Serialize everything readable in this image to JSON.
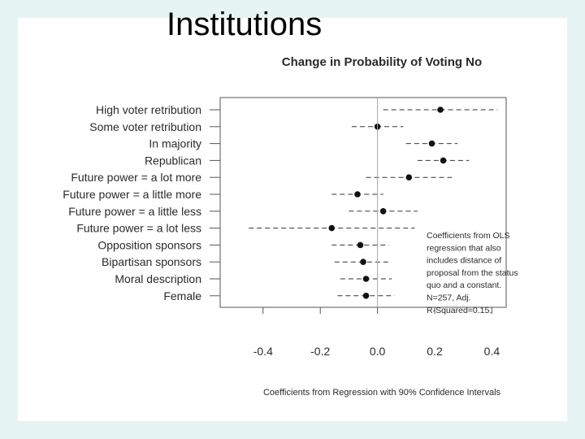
{
  "slide": {
    "title": "Institutions"
  },
  "chart_data": {
    "type": "scatter",
    "title": "Change in Probability of Voting No",
    "xlabel": "Coefficients from Regression with 90% Confidence Intervals",
    "ylabel": "",
    "xlim": [
      -0.55,
      0.45
    ],
    "xticks": [
      -0.4,
      -0.2,
      0.0,
      0.2,
      0.4
    ],
    "xtick_labels": [
      "-0.4",
      "-0.2",
      "0.0",
      "0.2",
      "0.4"
    ],
    "reference_line": 0.0,
    "series": [
      {
        "name": "Coefficient",
        "categories": [
          "High voter retribution",
          "Some voter retribution",
          "In majority",
          "Republican",
          "Future power = a lot more",
          "Future power = a little more",
          "Future power = a little less",
          "Future power = a lot less",
          "Opposition sponsors",
          "Bipartisan sponsors",
          "Moral description",
          "Female"
        ],
        "values": [
          0.22,
          0.0,
          0.19,
          0.23,
          0.11,
          -0.07,
          0.02,
          -0.16,
          -0.06,
          -0.05,
          -0.04,
          -0.04
        ],
        "ci_low": [
          0.02,
          -0.09,
          0.1,
          0.14,
          -0.04,
          -0.16,
          -0.1,
          -0.45,
          -0.16,
          -0.15,
          -0.13,
          -0.14
        ],
        "ci_high": [
          0.42,
          0.09,
          0.28,
          0.32,
          0.26,
          0.02,
          0.14,
          0.13,
          0.04,
          0.04,
          0.05,
          0.06
        ]
      }
    ],
    "annotation": {
      "lines": [
        "Coefficients from OLS",
        "regression that also",
        "includes distance of",
        "proposal from the status",
        "quo and a constant.",
        "N=257, Adj.",
        "R-Squared=0.15."
      ]
    }
  }
}
